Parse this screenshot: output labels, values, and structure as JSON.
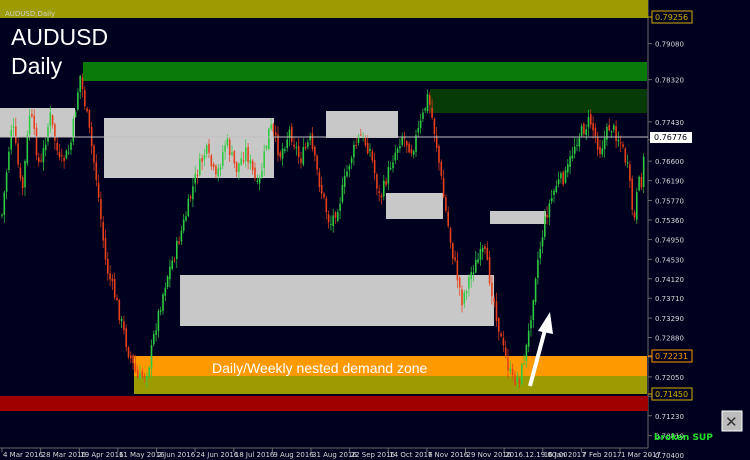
{
  "window": {
    "title": "AUDUSD,Daily"
  },
  "overlay": {
    "symbol": "AUDUSD",
    "timeframe": "Daily",
    "zone_label": "Daily/Weekly nested demand zone",
    "broken_label": "broken SUP"
  },
  "price_labels": [
    {
      "value": "0.79256",
      "color": "#d4b000"
    },
    {
      "value": "0.72231",
      "color": "#ff9900"
    },
    {
      "value": "0.71450",
      "color": "#d4b000"
    }
  ],
  "current_price_label": "0.76776",
  "colors": {
    "background": "#00001f",
    "bull_candle": "#2ecc40",
    "bear_candle": "#e8401a",
    "supply_zone": "#0a7a0a",
    "gray_zone": "#c8c8c8",
    "demand_zone": "#ff9900",
    "olive_band": "#9c9c00",
    "red_band": "#a00000",
    "arrow": "#ffffff"
  },
  "chart_data": {
    "type": "candlestick",
    "symbol": "AUDUSD",
    "timeframe": "Daily",
    "ylim": [
      0.7055,
      0.8
    ],
    "y_ticks": [
      "0.79080",
      "0.78320",
      "0.77430",
      "0.77050",
      "0.76600",
      "0.76190",
      "0.75770",
      "0.75360",
      "0.74950",
      "0.74530",
      "0.74120",
      "0.73710",
      "0.73290",
      "0.72880",
      "0.72470",
      "0.72050",
      "0.71640",
      "0.71230",
      "0.70810",
      "0.70400"
    ],
    "x_ticks": [
      "4 Mar 2016",
      "28 Mar 2016",
      "19 Apr 2016",
      "11 May 2016",
      "2 Jun 2016",
      "24 Jun 2016",
      "18 Jul 2016",
      "9 Aug 2016",
      "31 Aug 2016",
      "22 Sep 2016",
      "14 Oct 2016",
      "7 Nov 2016",
      "29 Nov 2016",
      "2016.12.19 00:00",
      "16 Jan 2017",
      "7 Feb 2017",
      "1 Mar 2017"
    ],
    "date_range": [
      "2016-03-01",
      "2017-03-15"
    ],
    "price_range": [
      0.7149,
      0.7836
    ],
    "horizontal_lines": [
      {
        "label": "0.79256",
        "value": 0.79256
      },
      {
        "label": "0.76776",
        "value": 0.76776
      },
      {
        "label": "0.72231",
        "value": 0.72231
      },
      {
        "label": "0.71450",
        "value": 0.7145
      }
    ],
    "zones": [
      {
        "name": "upper-olive-band",
        "type": "band",
        "color": "#9c9c00"
      },
      {
        "name": "supply-zone-1",
        "type": "supply",
        "color": "#0a7a0a"
      },
      {
        "name": "supply-zone-2",
        "type": "supply",
        "color": "#063a06"
      },
      {
        "name": "gray-zone-1",
        "type": "gray"
      },
      {
        "name": "gray-zone-2",
        "type": "gray"
      },
      {
        "name": "gray-zone-3",
        "type": "gray"
      },
      {
        "name": "gray-zone-4",
        "type": "gray"
      },
      {
        "name": "gray-zone-5",
        "type": "gray"
      },
      {
        "name": "gray-zone-6",
        "type": "gray"
      },
      {
        "name": "demand-zone",
        "type": "demand",
        "label": "Daily/Weekly nested demand zone",
        "color": "#ff9900"
      },
      {
        "name": "lower-olive-band",
        "type": "band",
        "color": "#9c9c00"
      },
      {
        "name": "red-band",
        "type": "band",
        "color": "#a00000"
      }
    ]
  }
}
